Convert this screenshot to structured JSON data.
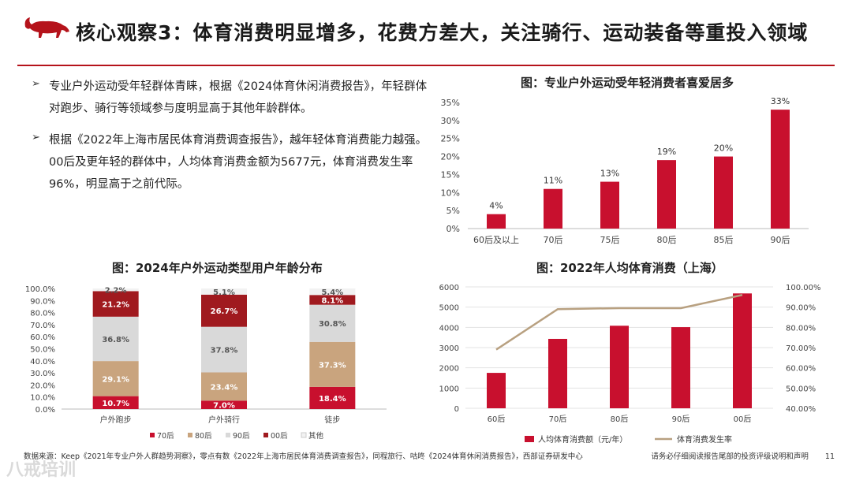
{
  "header": {
    "title": "核心观察3：体育消费明显增多，花费方差大，关注骑行、运动装备等重投入领域"
  },
  "bullets": [
    "专业户外运动受年轻群体青睐，根据《2024体育休闲消费报告》，年轻群体对跑步、骑行等领域参与度明显高于其他年龄群体。",
    "根据《2022年上海市居民体育消费调查报告》，越年轻体育消费能力越强。00后及更年轻的群体中，人均体育消费金额为5677元，体育消费发生率96%，明显高于之前代际。"
  ],
  "colors": {
    "accent": "#b5131b",
    "bar_red": "#c8102e",
    "dark_red": "#a01a1f",
    "tan": "#c9a47e",
    "light_gray": "#d9d9d9",
    "pale": "#f2f2f2",
    "line_tan": "#b8a080"
  },
  "chart_data": [
    {
      "type": "bar",
      "title": "图：专业户外运动受年轻消费者喜爱居多",
      "categories": [
        "60后及以上",
        "70后",
        "75后",
        "80后",
        "85后",
        "90后"
      ],
      "values": [
        4,
        11,
        13,
        19,
        20,
        33
      ],
      "value_labels": [
        "4%",
        "11%",
        "13%",
        "19%",
        "20%",
        "33%"
      ],
      "yticks": [
        "0%",
        "5%",
        "10%",
        "15%",
        "20%",
        "25%",
        "30%",
        "35%"
      ],
      "ylim": [
        0,
        35
      ]
    },
    {
      "type": "bar",
      "stacked": true,
      "title": "图：2024年户外运动类型用户年龄分布",
      "categories": [
        "户外跑步",
        "户外骑行",
        "徒步"
      ],
      "yticks": [
        "0.0%",
        "10.0%",
        "20.0%",
        "30.0%",
        "40.0%",
        "50.0%",
        "60.0%",
        "70.0%",
        "80.0%",
        "90.0%",
        "100.0%"
      ],
      "ylim": [
        0,
        100
      ],
      "series": [
        {
          "name": "70后",
          "values": [
            10.7,
            7.0,
            18.4
          ],
          "labels": [
            "10.7%",
            "7.0%",
            "18.4%"
          ]
        },
        {
          "name": "80后",
          "values": [
            29.1,
            23.4,
            37.3
          ],
          "labels": [
            "29.1%",
            "23.4%",
            "37.3%"
          ]
        },
        {
          "name": "90后",
          "values": [
            36.8,
            37.8,
            30.8
          ],
          "labels": [
            "36.8%",
            "37.8%",
            "30.8%"
          ]
        },
        {
          "name": "00后",
          "values": [
            21.2,
            26.7,
            8.1
          ],
          "labels": [
            "21.2%",
            "26.7%",
            "8.1%"
          ]
        },
        {
          "name": "其他",
          "values": [
            2.2,
            5.1,
            5.4
          ],
          "labels": [
            "2.2%",
            "5.1%",
            "5.4%"
          ]
        }
      ]
    },
    {
      "type": "bar+line",
      "title": "图：2022年人均体育消费（上海）",
      "categories": [
        "60后",
        "70后",
        "80后",
        "90后",
        "00后"
      ],
      "bar_series": {
        "name": "人均体育消费额（元/年）",
        "values": [
          1750,
          3430,
          4080,
          4010,
          5677
        ]
      },
      "line_series": {
        "name": "体育消费发生率",
        "values": [
          69,
          89,
          89.5,
          89.5,
          96
        ]
      },
      "yticks_left": [
        "0",
        "1000",
        "2000",
        "3000",
        "4000",
        "5000",
        "6000"
      ],
      "yticks_right": [
        "40.00%",
        "50.00%",
        "60.00%",
        "70.00%",
        "80.00%",
        "90.00%",
        "100.00%"
      ],
      "ylim_left": [
        0,
        6000
      ],
      "ylim_right": [
        40,
        100
      ]
    }
  ],
  "footer": {
    "source": "数据来源：Keep《2021年专业户外人群趋势洞察》，零点有数《2022年上海市居民体育消费调查报告》，同程旅行、咕咚《2024体育休闲消费报告》，西部证券研发中心",
    "disclaimer": "请务必仔细阅读报告尾部的投资评级说明和声明",
    "page": "11"
  },
  "watermark": "八戒培训"
}
